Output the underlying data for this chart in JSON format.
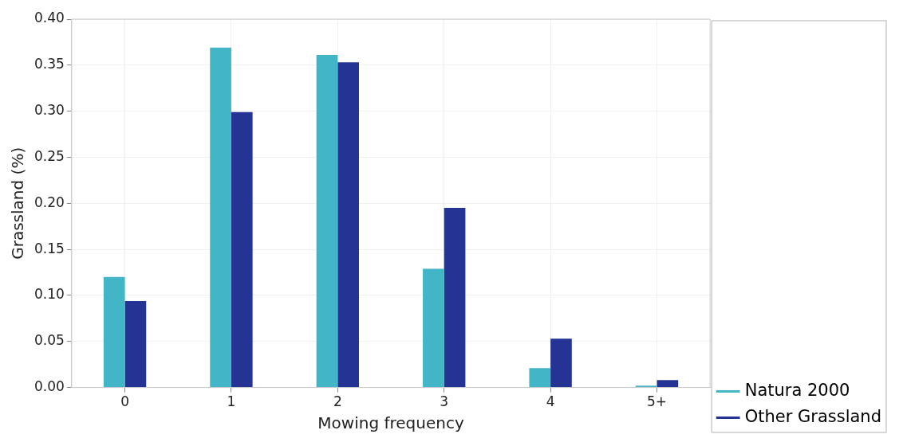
{
  "chart_data": {
    "type": "bar",
    "xlabel": "Mowing frequency",
    "ylabel": "Grassland (%)",
    "categories": [
      "0",
      "1",
      "2",
      "3",
      "4",
      "5+"
    ],
    "series": [
      {
        "name": "Natura 2000",
        "color": "#42b6c6",
        "values": [
          0.12,
          0.369,
          0.361,
          0.129,
          0.021,
          0.002
        ]
      },
      {
        "name": "Other Grassland",
        "color": "#253494",
        "values": [
          0.094,
          0.299,
          0.353,
          0.195,
          0.053,
          0.008
        ]
      }
    ],
    "ylim": [
      0,
      0.4
    ],
    "yticks": [
      {
        "value": 0,
        "label": "0.00"
      },
      {
        "value": 0.05,
        "label": "0.05"
      },
      {
        "value": 0.1,
        "label": "0.10"
      },
      {
        "value": 0.15,
        "label": "0.15"
      },
      {
        "value": 0.2,
        "label": "0.20"
      },
      {
        "value": 0.25,
        "label": "0.25"
      },
      {
        "value": 0.3,
        "label": "0.30"
      },
      {
        "value": 0.35,
        "label": "0.35"
      },
      {
        "value": 0.4,
        "label": "0.40"
      }
    ],
    "grid": true,
    "legend": "right"
  }
}
